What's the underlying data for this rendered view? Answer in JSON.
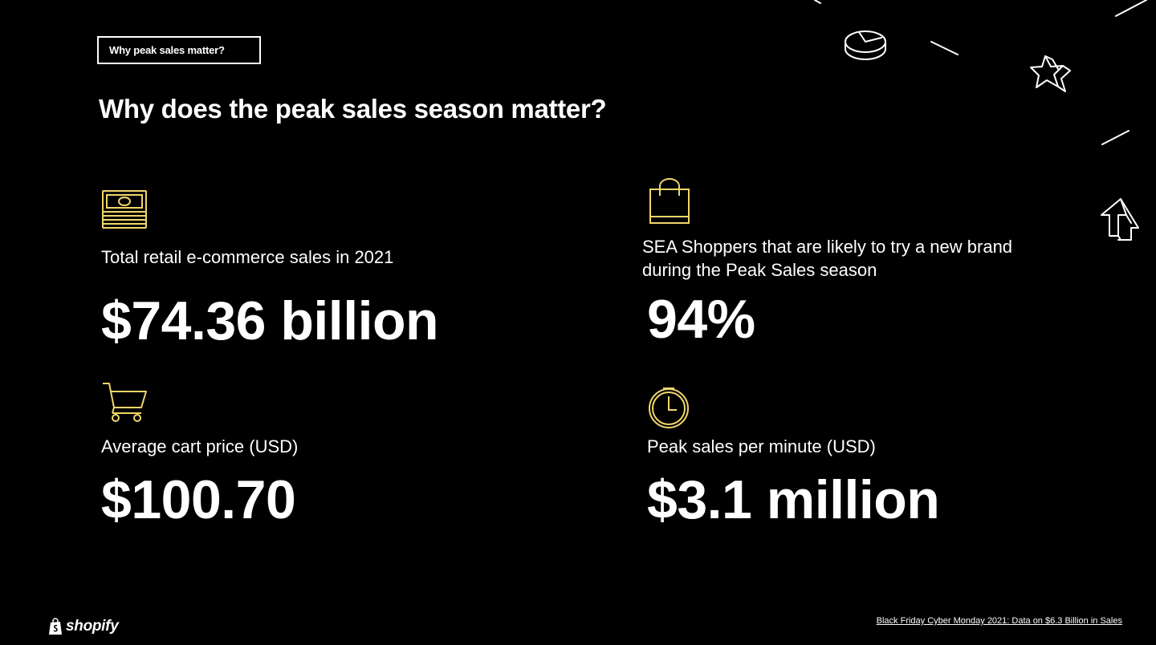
{
  "slide": {
    "tag_label": "Why peak sales matter?",
    "title": "Why does the peak sales season matter?"
  },
  "stats": [
    {
      "icon": "cash-stack-icon",
      "label": "Total retail e-commerce sales in 2021",
      "value": "$74.36 billion"
    },
    {
      "icon": "shopping-bag-icon",
      "label": "SEA Shoppers that are likely to try a new brand during the Peak Sales season",
      "value": "94%"
    },
    {
      "icon": "shopping-cart-icon",
      "label": "Average cart price (USD)",
      "value": "$100.70"
    },
    {
      "icon": "clock-icon",
      "label": "Peak sales per minute (USD)",
      "value": "$3.1 million"
    }
  ],
  "footer": {
    "brand": "shopify",
    "source_link": "Black Friday Cyber Monday 2021: Data on $6.3 Billion in Sales"
  },
  "colors": {
    "background": "#000000",
    "text": "#ffffff",
    "icon_accent": "#f0d66b"
  }
}
